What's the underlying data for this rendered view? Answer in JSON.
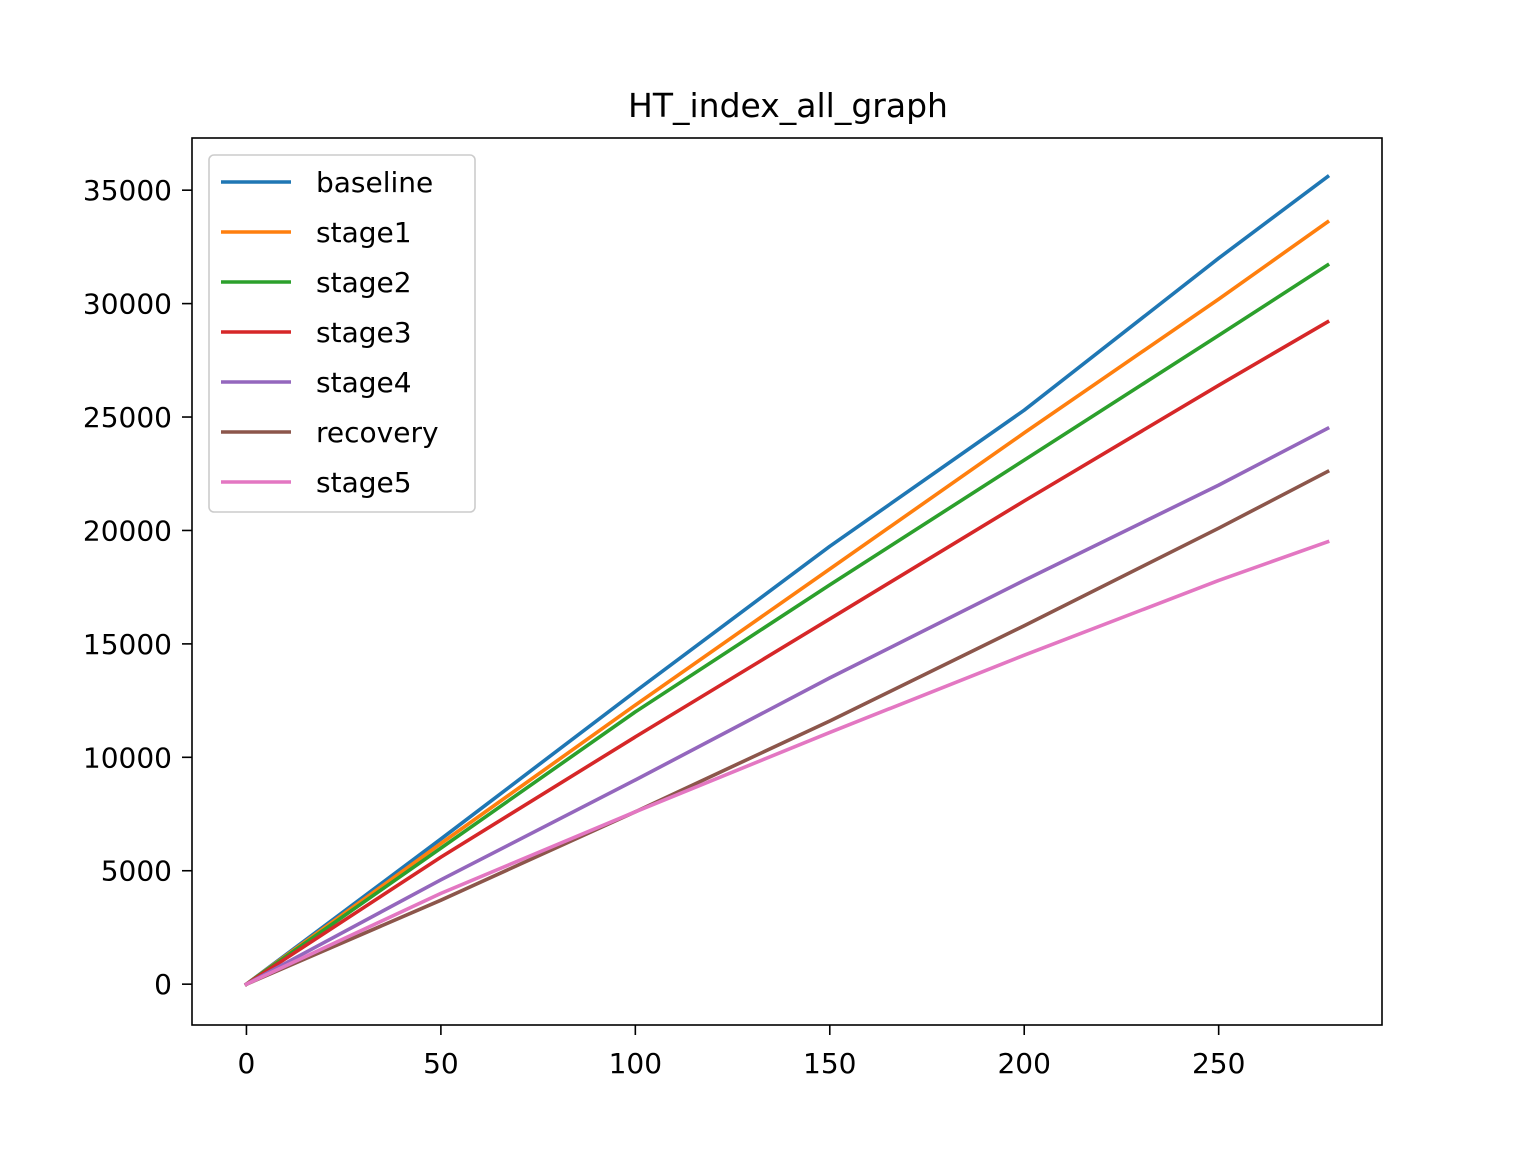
{
  "chart_data": {
    "type": "line",
    "title": "HT_index_all_graph",
    "xlabel": "",
    "ylabel": "",
    "xlim": [
      -14,
      292
    ],
    "ylim": [
      -1800,
      37300
    ],
    "xticks": [
      0,
      50,
      100,
      150,
      200,
      250
    ],
    "yticks": [
      0,
      5000,
      10000,
      15000,
      20000,
      25000,
      30000,
      35000
    ],
    "grid": false,
    "legend_position": "upper-left",
    "series": [
      {
        "name": "baseline",
        "color": "#1f77b4",
        "x": [
          0,
          50,
          100,
          150,
          200,
          250,
          278
        ],
        "y": [
          0,
          6400,
          12900,
          19300,
          25300,
          32000,
          35600
        ]
      },
      {
        "name": "stage1",
        "color": "#ff7f0e",
        "x": [
          0,
          50,
          100,
          150,
          200,
          250,
          278
        ],
        "y": [
          0,
          6200,
          12300,
          18300,
          24300,
          30200,
          33600
        ]
      },
      {
        "name": "stage2",
        "color": "#2ca02c",
        "x": [
          0,
          50,
          100,
          150,
          200,
          250,
          278
        ],
        "y": [
          0,
          6000,
          12000,
          17600,
          23100,
          28600,
          31700
        ]
      },
      {
        "name": "stage3",
        "color": "#d62728",
        "x": [
          0,
          50,
          100,
          150,
          200,
          250,
          278
        ],
        "y": [
          0,
          5600,
          10900,
          16100,
          21300,
          26400,
          29200
        ]
      },
      {
        "name": "stage4",
        "color": "#9467bd",
        "x": [
          0,
          50,
          100,
          150,
          200,
          250,
          278
        ],
        "y": [
          0,
          4600,
          9000,
          13500,
          17800,
          22000,
          24500
        ]
      },
      {
        "name": "recovery",
        "color": "#8c564b",
        "x": [
          0,
          50,
          100,
          150,
          200,
          250,
          278
        ],
        "y": [
          0,
          3700,
          7600,
          11600,
          15800,
          20100,
          22600
        ]
      },
      {
        "name": "stage5",
        "color": "#e377c2",
        "x": [
          0,
          50,
          100,
          150,
          200,
          250,
          278
        ],
        "y": [
          0,
          4000,
          7600,
          11100,
          14500,
          17800,
          19500
        ]
      }
    ]
  }
}
